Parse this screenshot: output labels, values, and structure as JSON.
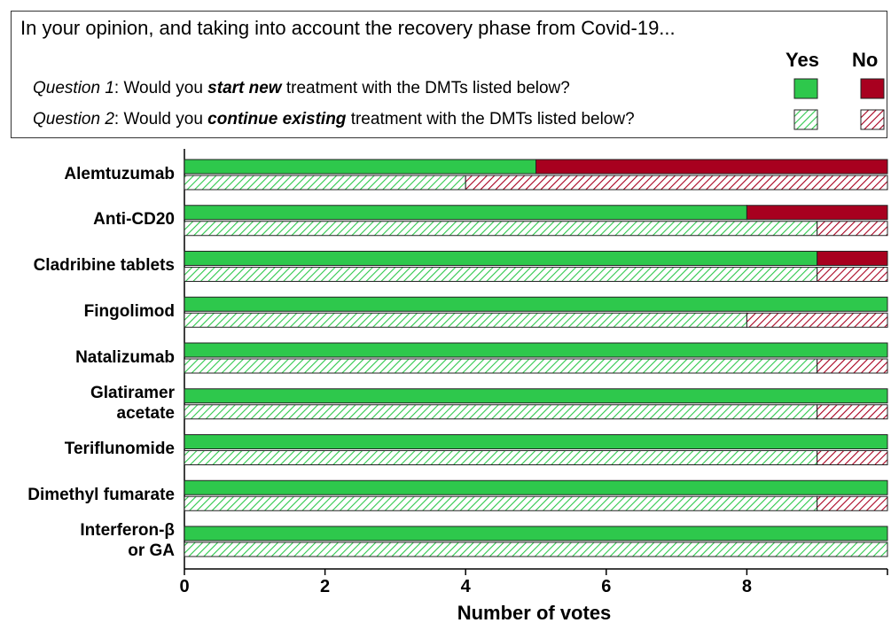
{
  "chart_data": {
    "type": "bar",
    "orientation": "horizontal",
    "stacked": true,
    "legend": {
      "title": "In your opinion, and taking into account the recovery phase from Covid-19...",
      "rows": [
        [
          "Question 1",
          ": Would you ",
          "start new",
          " treatment with the DMTs listed below?"
        ],
        [
          "Question 2",
          ": Would you ",
          "continue existing",
          " treatment with the DMTs listed below?"
        ]
      ]
    },
    "categories": [
      "Alemtuzumab",
      "Anti-CD20",
      "Cladribine tablets",
      "Fingolimod",
      "Natalizumab",
      "Glatiramer\nacetate",
      "Teriflunomide",
      "Dimethyl fumarate",
      "Interferon-β\nor GA"
    ],
    "groups": [
      {
        "hatched": false,
        "series": [
          {
            "name": "Yes",
            "color": "#2ec84c",
            "values": [
              5,
              8,
              9,
              10,
              10,
              10,
              10,
              10,
              10
            ]
          },
          {
            "name": "No",
            "color": "#a8001f",
            "values": [
              5,
              2,
              1,
              0,
              0,
              0,
              0,
              0,
              0
            ]
          }
        ]
      },
      {
        "hatched": true,
        "series": [
          {
            "name": "Yes",
            "color": "#2ec84c",
            "values": [
              4,
              9,
              9,
              8,
              9,
              9,
              9,
              9,
              10
            ]
          },
          {
            "name": "No",
            "color": "#a8001f",
            "values": [
              6,
              1,
              1,
              2,
              1,
              1,
              1,
              1,
              0
            ]
          }
        ]
      }
    ],
    "xlabel": "Number of votes",
    "xlim": [
      0,
      10
    ],
    "xticks": [
      0,
      2,
      4,
      6,
      8
    ]
  }
}
